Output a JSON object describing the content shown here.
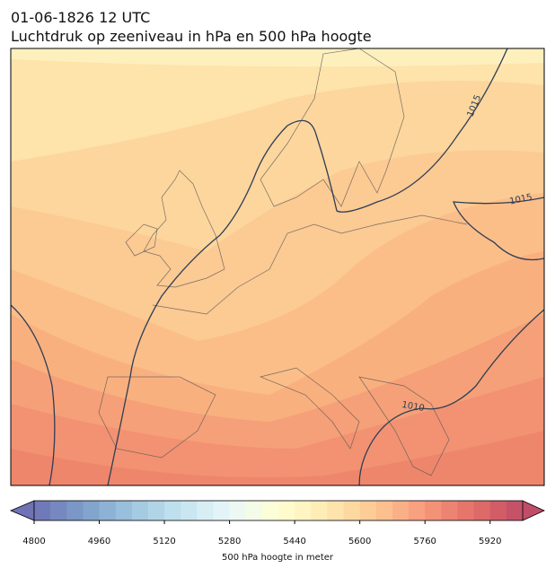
{
  "title": "01-06-1826 12 UTC",
  "subtitle": "Luchtdruk op zeeniveau in hPa en 500 hPa hoogte",
  "map": {
    "isobar_labels": [
      "1015",
      "1015",
      "1010"
    ]
  },
  "colorbar": {
    "label": "500 hPa hoogte in meter",
    "lim": [
      4800,
      6000
    ],
    "step": 40,
    "ticks": [
      4800,
      4960,
      5120,
      5280,
      5440,
      5600,
      5760,
      5920
    ],
    "colormap": [
      "#313695",
      "#4575b4",
      "#74add1",
      "#abd9e9",
      "#e0f3f8",
      "#ffffbf",
      "#fee090",
      "#fdae61",
      "#f46d43",
      "#d73027",
      "#a50026"
    ],
    "alpha": 0.7
  }
}
